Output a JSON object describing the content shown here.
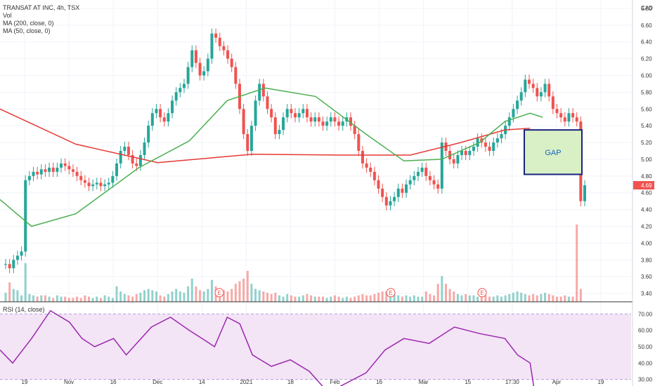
{
  "header": {
    "symbol_line": "TRANSAT AT INC, 4h, TSX",
    "currency": "CAD",
    "indicators": [
      "Vol",
      "MA (200, close, 0)",
      "MA (50, close, 0)"
    ]
  },
  "rsi": {
    "label": "RSI (14, close)",
    "ticks": [
      70,
      60,
      50,
      40,
      30
    ],
    "tick_labels": [
      "70.00",
      "60.00",
      "50.00",
      "40.00",
      "30.00"
    ],
    "band": [
      30,
      70
    ]
  },
  "annotation": {
    "label": "GAP",
    "top": 5.35,
    "bottom": 4.82
  },
  "last_price": {
    "label": "4.69",
    "value": 4.69
  },
  "earnings_markers": [
    "E",
    "E",
    "E"
  ],
  "colors": {
    "up": "#26a69a",
    "down": "#ef5350",
    "ma200": "#e53935",
    "ma50": "#4caf50",
    "rsi": "#9c27b0",
    "rsi_band": "#f3e5f5",
    "gap_fill": "#d9f0c6",
    "gap_border": "#1a237e",
    "gap_text": "#1565c0"
  },
  "chart_data": {
    "type": "candlestick",
    "title": "TRANSAT AT INC, 4h, TSX",
    "currency": "CAD",
    "x_ticks": [
      "19",
      "Nov",
      "16",
      "Dec",
      "14",
      "2021",
      "18",
      "Feb",
      "16",
      "Mar",
      "15",
      "17:30",
      "Apr",
      "19"
    ],
    "y_ticks": [
      6.8,
      6.6,
      6.4,
      6.2,
      6.0,
      5.8,
      5.6,
      5.4,
      5.2,
      5.0,
      4.8,
      4.6,
      4.4,
      4.2,
      4.0,
      3.8,
      3.6,
      3.4
    ],
    "y_tick_labels": [
      "6.80",
      "6.60",
      "6.40",
      "6.20",
      "6.00",
      "5.80",
      "5.60",
      "5.40",
      "5.20",
      "5.00",
      "4.80",
      "4.60",
      "4.40",
      "4.20",
      "4.00",
      "3.80",
      "3.60",
      "3.40"
    ],
    "ylim": [
      3.3,
      6.9
    ],
    "grid": true,
    "closes": [
      3.75,
      3.7,
      3.8,
      3.85,
      3.9,
      4.75,
      4.8,
      4.85,
      4.82,
      4.88,
      4.85,
      4.9,
      4.85,
      4.9,
      4.95,
      4.92,
      4.88,
      4.85,
      4.8,
      4.75,
      4.72,
      4.68,
      4.7,
      4.72,
      4.68,
      4.7,
      4.72,
      4.8,
      4.95,
      5.1,
      5.15,
      5.05,
      4.95,
      4.92,
      5.05,
      5.2,
      5.4,
      5.55,
      5.6,
      5.5,
      5.45,
      5.55,
      5.7,
      5.8,
      5.85,
      5.9,
      6.1,
      6.3,
      6.15,
      6.0,
      6.05,
      6.2,
      6.5,
      6.45,
      6.35,
      6.3,
      6.2,
      6.1,
      5.9,
      5.6,
      5.3,
      5.1,
      5.4,
      5.7,
      5.9,
      5.75,
      5.6,
      5.5,
      5.3,
      5.35,
      5.5,
      5.6,
      5.55,
      5.5,
      5.55,
      5.6,
      5.5,
      5.45,
      5.5,
      5.45,
      5.4,
      5.45,
      5.5,
      5.45,
      5.4,
      5.45,
      5.5,
      5.4,
      5.3,
      5.1,
      4.95,
      4.9,
      4.85,
      4.75,
      4.65,
      4.55,
      4.45,
      4.5,
      4.55,
      4.65,
      4.6,
      4.7,
      4.75,
      4.8,
      4.85,
      4.9,
      4.8,
      4.75,
      4.7,
      4.65,
      5.2,
      5.1,
      5.0,
      4.95,
      5.05,
      5.1,
      5.05,
      5.1,
      5.15,
      5.25,
      5.2,
      5.15,
      5.1,
      5.2,
      5.25,
      5.3,
      5.4,
      5.5,
      5.6,
      5.7,
      5.8,
      5.95,
      5.9,
      5.85,
      5.75,
      5.8,
      5.9,
      5.75,
      5.6,
      5.55,
      5.5,
      5.45,
      5.55,
      5.5,
      5.45,
      4.5,
      4.69
    ],
    "volume": [
      7,
      15,
      10,
      9,
      5,
      30,
      6,
      5,
      4,
      5,
      5,
      4,
      3,
      5,
      4,
      4,
      3,
      3,
      4,
      3,
      5,
      4,
      3,
      4,
      3,
      5,
      4,
      3,
      12,
      8,
      6,
      5,
      4,
      6,
      7,
      9,
      10,
      9,
      8,
      5,
      4,
      6,
      8,
      10,
      8,
      7,
      12,
      18,
      12,
      9,
      8,
      10,
      17,
      12,
      10,
      9,
      8,
      10,
      14,
      16,
      18,
      24,
      14,
      10,
      9,
      8,
      7,
      6,
      7,
      5,
      4,
      6,
      5,
      4,
      4,
      5,
      6,
      5,
      4,
      4,
      4,
      3,
      4,
      5,
      4,
      3,
      4,
      3,
      4,
      5,
      6,
      5,
      5,
      6,
      7,
      8,
      8,
      7,
      6,
      5,
      4,
      5,
      4,
      5,
      4,
      4,
      8,
      6,
      5,
      14,
      20,
      14,
      10,
      8,
      6,
      5,
      6,
      5,
      5,
      4,
      4,
      5,
      4,
      4,
      5,
      4,
      5,
      6,
      7,
      8,
      7,
      6,
      5,
      6,
      5,
      6,
      7,
      6,
      5,
      4,
      4,
      5,
      4,
      4,
      60,
      10
    ],
    "volume_ylim": [
      0,
      60
    ],
    "ma200": [
      {
        "x": 0,
        "y": 5.6
      },
      {
        "x": 0.12,
        "y": 5.18
      },
      {
        "x": 0.25,
        "y": 4.96
      },
      {
        "x": 0.4,
        "y": 5.06
      },
      {
        "x": 0.55,
        "y": 5.05
      },
      {
        "x": 0.65,
        "y": 5.05
      },
      {
        "x": 0.73,
        "y": 5.2
      },
      {
        "x": 0.8,
        "y": 5.35
      },
      {
        "x": 0.84,
        "y": 5.37
      }
    ],
    "ma50": [
      {
        "x": 0,
        "y": 4.52
      },
      {
        "x": 0.05,
        "y": 4.2
      },
      {
        "x": 0.12,
        "y": 4.35
      },
      {
        "x": 0.22,
        "y": 4.9
      },
      {
        "x": 0.3,
        "y": 5.22
      },
      {
        "x": 0.36,
        "y": 5.7
      },
      {
        "x": 0.42,
        "y": 5.85
      },
      {
        "x": 0.5,
        "y": 5.75
      },
      {
        "x": 0.58,
        "y": 5.3
      },
      {
        "x": 0.64,
        "y": 4.98
      },
      {
        "x": 0.7,
        "y": 5.0
      },
      {
        "x": 0.76,
        "y": 5.2
      },
      {
        "x": 0.8,
        "y": 5.45
      },
      {
        "x": 0.84,
        "y": 5.55
      },
      {
        "x": 0.86,
        "y": 5.5
      }
    ],
    "rsi_values": [
      {
        "x": 0,
        "y": 48
      },
      {
        "x": 0.02,
        "y": 40
      },
      {
        "x": 0.05,
        "y": 55
      },
      {
        "x": 0.08,
        "y": 72
      },
      {
        "x": 0.11,
        "y": 65
      },
      {
        "x": 0.13,
        "y": 55
      },
      {
        "x": 0.15,
        "y": 50
      },
      {
        "x": 0.18,
        "y": 55
      },
      {
        "x": 0.2,
        "y": 45
      },
      {
        "x": 0.24,
        "y": 62
      },
      {
        "x": 0.27,
        "y": 68
      },
      {
        "x": 0.3,
        "y": 60
      },
      {
        "x": 0.32,
        "y": 55
      },
      {
        "x": 0.34,
        "y": 50
      },
      {
        "x": 0.36,
        "y": 68
      },
      {
        "x": 0.38,
        "y": 64
      },
      {
        "x": 0.4,
        "y": 45
      },
      {
        "x": 0.43,
        "y": 38
      },
      {
        "x": 0.46,
        "y": 42
      },
      {
        "x": 0.49,
        "y": 35
      },
      {
        "x": 0.52,
        "y": 22
      },
      {
        "x": 0.55,
        "y": 28
      },
      {
        "x": 0.58,
        "y": 34
      },
      {
        "x": 0.61,
        "y": 48
      },
      {
        "x": 0.64,
        "y": 55
      },
      {
        "x": 0.68,
        "y": 52
      },
      {
        "x": 0.72,
        "y": 62
      },
      {
        "x": 0.76,
        "y": 58
      },
      {
        "x": 0.8,
        "y": 55
      },
      {
        "x": 0.82,
        "y": 45
      },
      {
        "x": 0.84,
        "y": 40
      },
      {
        "x": 0.85,
        "y": 15
      }
    ],
    "rsi_ylim": [
      26,
      74
    ]
  }
}
